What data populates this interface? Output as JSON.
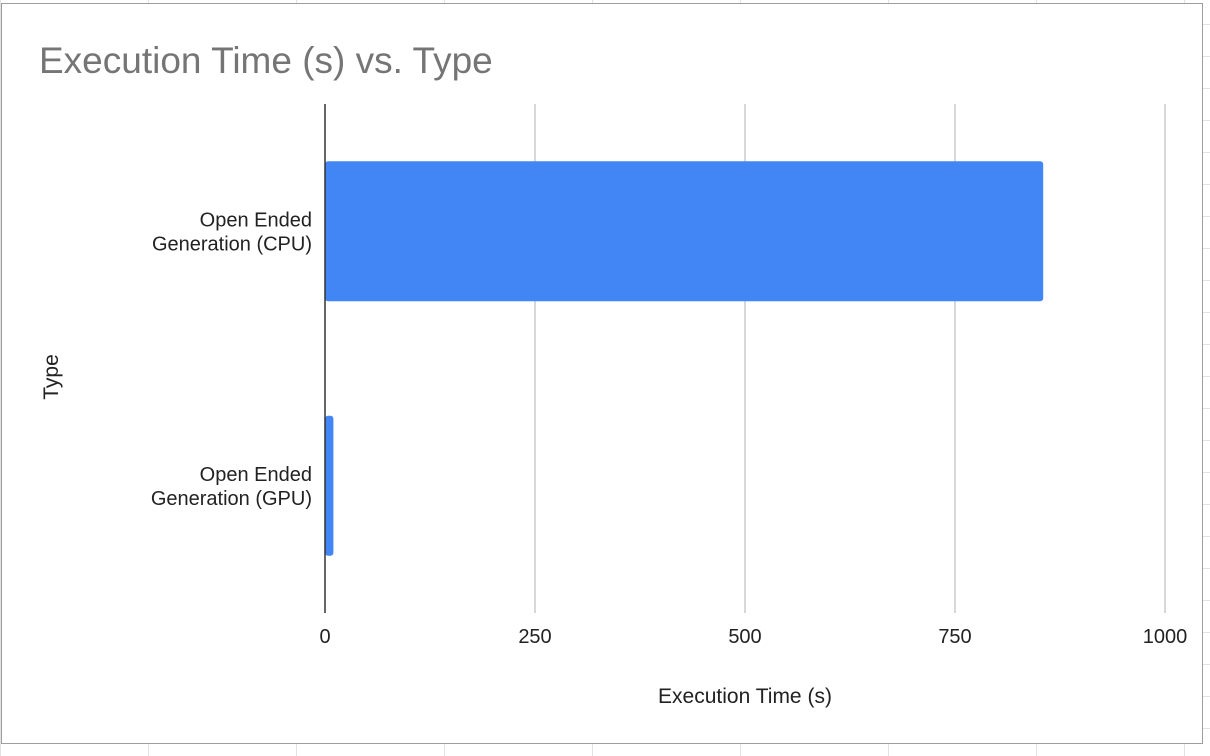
{
  "chart_data": {
    "type": "bar",
    "orientation": "horizontal",
    "title": "Execution Time (s) vs. Type",
    "xlabel": "Execution Time (s)",
    "ylabel": "Type",
    "xlim": [
      0,
      1000
    ],
    "xticks": [
      "0",
      "250",
      "500",
      "750",
      "1000"
    ],
    "categories": [
      [
        "Open Ended",
        "Generation (CPU)"
      ],
      [
        "Open Ended",
        "Generation (GPU)"
      ]
    ],
    "values": [
      855,
      10
    ],
    "bar_color": "#4285f4",
    "grid": true,
    "legend": "none"
  }
}
